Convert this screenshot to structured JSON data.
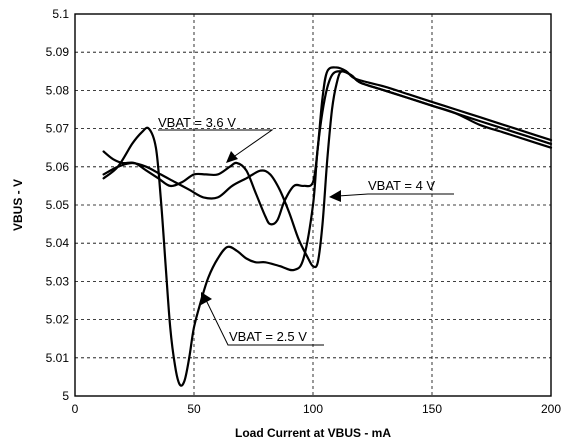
{
  "chart_data": {
    "type": "line",
    "title": "",
    "xlabel": "Load Current at VBUS - mA",
    "ylabel": "VBUS - V",
    "xlim": [
      0,
      200
    ],
    "ylim": [
      5.0,
      5.1
    ],
    "xticks": [
      0,
      50,
      100,
      150,
      200
    ],
    "xtick_labels": [
      "0",
      "50",
      "100",
      "150",
      "200"
    ],
    "yticks": [
      5.0,
      5.01,
      5.02,
      5.03,
      5.04,
      5.05,
      5.06,
      5.07,
      5.08,
      5.09,
      5.1
    ],
    "ytick_labels": [
      "5",
      "5.01",
      "5.02",
      "5.03",
      "5.04",
      "5.05",
      "5.06",
      "5.07",
      "5.08",
      "5.09",
      "5.1"
    ],
    "grid": true,
    "series": [
      {
        "name": "VBAT = 2.5 V",
        "x": [
          12,
          18,
          24,
          28,
          31,
          34,
          36,
          38,
          40,
          42,
          44,
          46,
          48,
          50,
          53,
          56,
          60,
          64,
          68,
          72,
          76,
          80,
          86,
          92,
          96,
          100,
          102,
          105,
          108,
          112,
          116,
          120,
          130,
          140,
          150,
          160,
          170,
          180,
          190,
          200
        ],
        "y": [
          5.057,
          5.06,
          5.066,
          5.069,
          5.07,
          5.065,
          5.052,
          5.035,
          5.018,
          5.008,
          5.003,
          5.004,
          5.01,
          5.018,
          5.025,
          5.031,
          5.036,
          5.039,
          5.038,
          5.036,
          5.035,
          5.035,
          5.034,
          5.033,
          5.036,
          5.05,
          5.065,
          5.078,
          5.084,
          5.085,
          5.084,
          5.082,
          5.08,
          5.078,
          5.076,
          5.074,
          5.072,
          5.07,
          5.068,
          5.066
        ]
      },
      {
        "name": "VBAT = 3.6 V",
        "x": [
          12,
          16,
          20,
          25,
          30,
          35,
          40,
          45,
          50,
          55,
          60,
          65,
          68,
          72,
          76,
          80,
          82,
          85,
          88,
          92,
          96,
          100,
          102,
          104,
          106,
          110,
          114,
          118,
          130,
          140,
          150,
          160,
          170,
          180,
          190,
          200
        ],
        "y": [
          5.064,
          5.062,
          5.061,
          5.061,
          5.059,
          5.057,
          5.055,
          5.056,
          5.058,
          5.058,
          5.058,
          5.06,
          5.061,
          5.059,
          5.053,
          5.047,
          5.045,
          5.046,
          5.051,
          5.055,
          5.055,
          5.056,
          5.065,
          5.078,
          5.085,
          5.086,
          5.085,
          5.083,
          5.081,
          5.079,
          5.077,
          5.075,
          5.073,
          5.071,
          5.069,
          5.067
        ]
      },
      {
        "name": "VBAT = 4 V",
        "x": [
          12,
          18,
          24,
          30,
          36,
          42,
          48,
          54,
          60,
          66,
          72,
          78,
          82,
          86,
          90,
          94,
          98,
          100,
          102,
          104,
          106,
          108,
          110,
          112,
          116,
          120,
          130,
          140,
          150,
          160,
          170,
          180,
          190,
          200
        ],
        "y": [
          5.058,
          5.06,
          5.061,
          5.06,
          5.058,
          5.056,
          5.054,
          5.052,
          5.052,
          5.055,
          5.057,
          5.059,
          5.058,
          5.054,
          5.048,
          5.041,
          5.036,
          5.034,
          5.035,
          5.045,
          5.062,
          5.075,
          5.082,
          5.085,
          5.084,
          5.082,
          5.08,
          5.078,
          5.076,
          5.074,
          5.071,
          5.069,
          5.067,
          5.065
        ]
      }
    ],
    "annotations": [
      {
        "text": "VBAT = 3.6 V",
        "target_x": 64,
        "target_y": 5.061
      },
      {
        "text": "VBAT = 4 V",
        "target_x": 106,
        "target_y": 5.051
      },
      {
        "text": "VBAT = 2.5 V",
        "target_x": 53,
        "target_y": 5.028
      }
    ]
  }
}
